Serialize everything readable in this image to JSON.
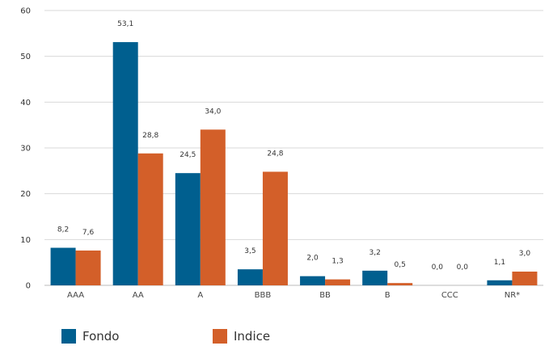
{
  "chart_data": {
    "type": "bar",
    "categories": [
      "AAA",
      "AA",
      "A",
      "BBB",
      "BB",
      "B",
      "CCC",
      "NR*"
    ],
    "series": [
      {
        "name": "Fondo",
        "color": "#005f8f",
        "values": [
          8.2,
          53.1,
          24.5,
          3.5,
          2.0,
          3.2,
          0.0,
          1.1
        ],
        "labels": [
          "8,2",
          "53,1",
          "24,5",
          "3,5",
          "2,0",
          "3,2",
          "0,0",
          "1,1"
        ]
      },
      {
        "name": "Indice",
        "color": "#d35f29",
        "values": [
          7.6,
          28.8,
          34.0,
          24.8,
          1.3,
          0.5,
          0.0,
          3.0
        ],
        "labels": [
          "7,6",
          "28,8",
          "34,0",
          "24,8",
          "1,3",
          "0,5",
          "0,0",
          "3,0"
        ]
      }
    ],
    "ylim": [
      0,
      60
    ],
    "yticks": [
      0,
      10,
      20,
      30,
      40,
      50,
      60
    ],
    "grid": true,
    "legend_position": "bottom-left"
  }
}
